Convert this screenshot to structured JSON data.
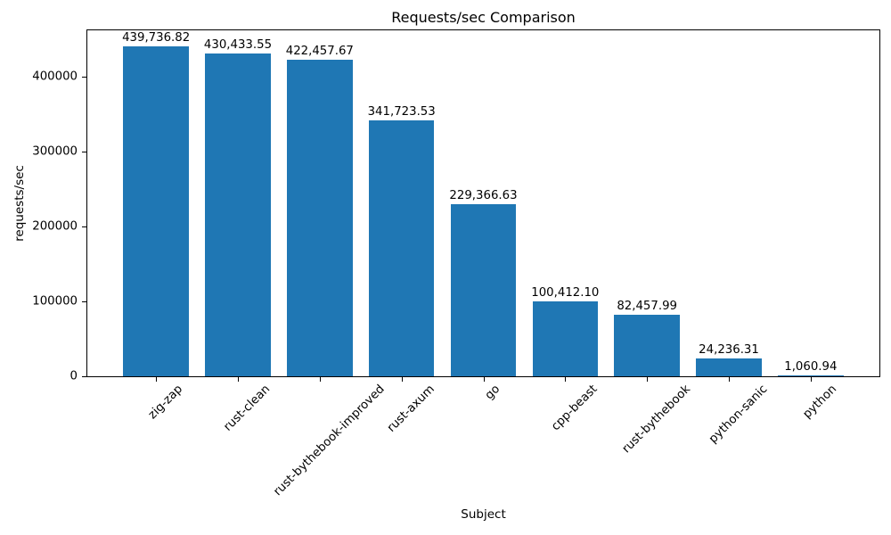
{
  "chart_data": {
    "type": "bar",
    "title": "Requests/sec Comparison",
    "xlabel": "Subject",
    "ylabel": "requests/sec",
    "categories": [
      "zig-zap",
      "rust-clean",
      "rust-bythebook-improved",
      "rust-axum",
      "go",
      "cpp-beast",
      "rust-bythebook",
      "python-sanic",
      "python"
    ],
    "values": [
      439736.82,
      430433.55,
      422457.67,
      341723.53,
      229366.63,
      100412.1,
      82457.99,
      24236.31,
      1060.94
    ],
    "bar_labels": [
      "439,736.82",
      "430,433.55",
      "422,457.67",
      "341,723.53",
      "229,366.63",
      "100,412.10",
      "82,457.99",
      "24,236.31",
      "1,060.94"
    ],
    "yticks": [
      0,
      100000,
      200000,
      300000,
      400000
    ],
    "ytick_labels": [
      "0",
      "100000",
      "200000",
      "300000",
      "400000"
    ],
    "ylim": [
      0,
      461723.66
    ],
    "xtick_rotation_deg": 45,
    "grid": false,
    "bar_color": "#1f77b4",
    "axis_color": "#000000",
    "text_color": "#000000"
  }
}
